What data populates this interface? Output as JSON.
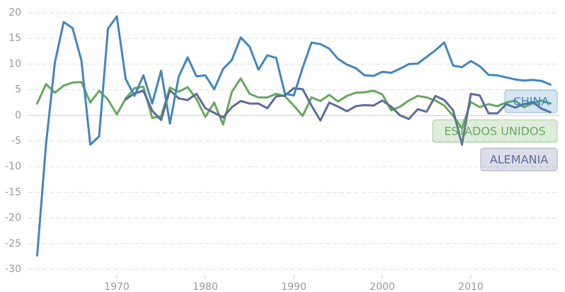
{
  "chart_data": {
    "type": "line",
    "x": [
      1961,
      1962,
      1963,
      1964,
      1965,
      1966,
      1967,
      1968,
      1969,
      1970,
      1971,
      1972,
      1973,
      1974,
      1975,
      1976,
      1977,
      1978,
      1979,
      1980,
      1981,
      1982,
      1983,
      1984,
      1985,
      1986,
      1987,
      1988,
      1989,
      1990,
      1991,
      1992,
      1993,
      1994,
      1995,
      1996,
      1997,
      1998,
      1999,
      2000,
      2001,
      2002,
      2003,
      2004,
      2005,
      2006,
      2007,
      2008,
      2009,
      2010,
      2011,
      2012,
      2013,
      2014,
      2015,
      2016,
      2017,
      2018,
      2019
    ],
    "series": [
      {
        "name": "CHINA",
        "color": "#3f87bd",
        "values": [
          -27.3,
          -5.6,
          10.3,
          18.2,
          17.0,
          10.7,
          -5.7,
          -4.1,
          16.9,
          19.3,
          7.1,
          3.8,
          7.8,
          2.3,
          8.7,
          -1.6,
          7.6,
          11.3,
          7.6,
          7.8,
          5.1,
          9.0,
          10.8,
          15.2,
          13.4,
          8.9,
          11.7,
          11.2,
          4.2,
          3.9,
          9.3,
          14.2,
          13.9,
          13.0,
          11.0,
          9.9,
          9.2,
          7.8,
          7.7,
          8.5,
          8.3,
          9.1,
          10.0,
          10.1,
          11.4,
          12.7,
          14.2,
          9.7,
          9.4,
          10.6,
          9.6,
          7.9,
          7.8,
          7.4,
          7.0,
          6.8,
          6.9,
          6.7,
          6.0
        ]
      },
      {
        "name": "ESTADOS UNIDOS",
        "color": "#68a85c",
        "values": [
          2.3,
          6.1,
          4.4,
          5.8,
          6.4,
          6.5,
          2.5,
          4.8,
          3.1,
          0.2,
          3.3,
          5.3,
          5.6,
          -0.5,
          -0.2,
          5.4,
          4.6,
          5.5,
          3.2,
          -0.3,
          2.5,
          -1.8,
          4.6,
          7.2,
          4.2,
          3.5,
          3.5,
          4.2,
          3.7,
          1.9,
          -0.1,
          3.5,
          2.8,
          4.0,
          2.7,
          3.8,
          4.4,
          4.5,
          4.8,
          4.1,
          1.0,
          1.7,
          2.9,
          3.8,
          3.5,
          2.9,
          1.9,
          -0.1,
          -2.5,
          2.6,
          1.6,
          2.2,
          1.8,
          2.5,
          2.9,
          1.6,
          2.4,
          2.9,
          2.3
        ]
      },
      {
        "name": "ALEMANIA",
        "color": "#5d6b9c",
        "values": [
          null,
          null,
          null,
          null,
          null,
          null,
          null,
          null,
          null,
          null,
          3.1,
          4.3,
          4.8,
          0.9,
          -0.9,
          4.9,
          3.3,
          3.0,
          4.2,
          1.4,
          0.5,
          -0.4,
          1.6,
          2.8,
          2.3,
          2.3,
          1.4,
          3.7,
          3.9,
          5.3,
          5.1,
          1.9,
          -1.0,
          2.5,
          1.7,
          0.8,
          1.8,
          2.0,
          1.9,
          2.9,
          1.7,
          0.0,
          -0.7,
          1.2,
          0.7,
          3.8,
          3.0,
          1.0,
          -5.7,
          4.2,
          3.9,
          0.4,
          0.4,
          2.2,
          1.5,
          2.2,
          2.6,
          1.3,
          0.6
        ]
      }
    ],
    "xlim": [
      1960,
      2020
    ],
    "xticks": [
      1970,
      1980,
      1990,
      2000,
      2010
    ],
    "ylim": [
      -30,
      20
    ],
    "yticks": [
      -30,
      -25,
      -20,
      -15,
      -10,
      -5,
      0,
      5,
      10,
      15,
      20
    ],
    "grid": true
  }
}
